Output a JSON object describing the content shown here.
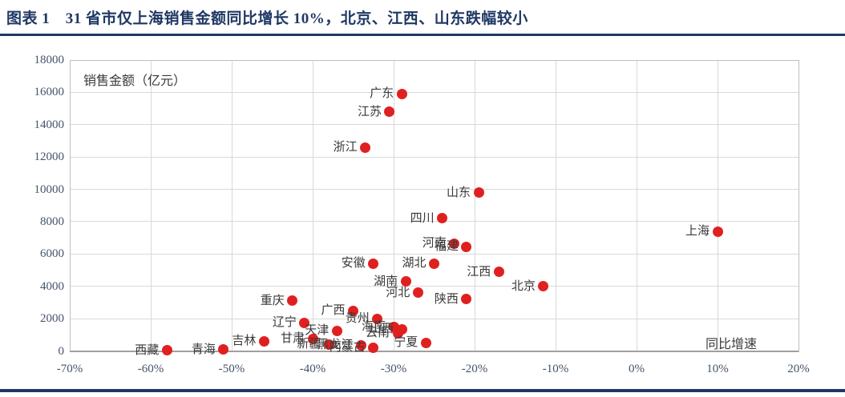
{
  "header": {
    "title": "图表 1　31 省市仅上海销售金额同比增长 10%，北京、江西、山东跌幅较小"
  },
  "colors": {
    "title_navy": "#1f3864",
    "tick_text": "#44546a",
    "marker_red": "#e02020",
    "gridline": "#d9d9d9"
  },
  "chart_data": {
    "type": "scatter",
    "title": "",
    "xlabel": "同比增速",
    "ylabel": "销售金额（亿元）",
    "xlim": [
      -70,
      20
    ],
    "ylim": [
      0,
      18000
    ],
    "x_tick_values": [
      -70,
      -60,
      -50,
      -40,
      -30,
      -20,
      -10,
      0,
      10,
      20
    ],
    "x_tick_labels": [
      "-70%",
      "-60%",
      "-50%",
      "-40%",
      "-30%",
      "-20%",
      "-10%",
      "0%",
      "10%",
      "20%"
    ],
    "y_tick_values": [
      0,
      2000,
      4000,
      6000,
      8000,
      10000,
      12000,
      14000,
      16000,
      18000
    ],
    "grid": true,
    "legend": "none",
    "marker_color": "#e02020",
    "points": [
      {
        "name": "广东",
        "x": -29,
        "y": 15900
      },
      {
        "name": "江苏",
        "x": -30.5,
        "y": 14800
      },
      {
        "name": "浙江",
        "x": -33.5,
        "y": 12600
      },
      {
        "name": "山东",
        "x": -19.5,
        "y": 9800
      },
      {
        "name": "四川",
        "x": -24,
        "y": 8200
      },
      {
        "name": "上海",
        "x": 10,
        "y": 7400
      },
      {
        "name": "河南",
        "x": -22.5,
        "y": 6650
      },
      {
        "name": "福建",
        "x": -21,
        "y": 6450
      },
      {
        "name": "安徽",
        "x": -32.5,
        "y": 5400
      },
      {
        "name": "湖北",
        "x": -25,
        "y": 5400
      },
      {
        "name": "江西",
        "x": -17,
        "y": 4900
      },
      {
        "name": "湖南",
        "x": -28.5,
        "y": 4300
      },
      {
        "name": "北京",
        "x": -11.5,
        "y": 4000
      },
      {
        "name": "河北",
        "x": -27,
        "y": 3600
      },
      {
        "name": "陕西",
        "x": -21,
        "y": 3200
      },
      {
        "name": "重庆",
        "x": -42.5,
        "y": 3100
      },
      {
        "name": "广西",
        "x": -35,
        "y": 2500
      },
      {
        "name": "贵州",
        "x": -32,
        "y": 2000
      },
      {
        "name": "辽宁",
        "x": -41,
        "y": 1750
      },
      {
        "name": "海南",
        "x": -30,
        "y": 1500
      },
      {
        "name": "山西",
        "x": -29,
        "y": 1350
      },
      {
        "name": "天津",
        "x": -37,
        "y": 1250
      },
      {
        "name": "云南",
        "x": -29.5,
        "y": 1100
      },
      {
        "name": "甘肃",
        "x": -40,
        "y": 750
      },
      {
        "name": "吉林",
        "x": -46,
        "y": 600
      },
      {
        "name": "宁夏",
        "x": -26,
        "y": 500
      },
      {
        "name": "新疆",
        "x": -38,
        "y": 400
      },
      {
        "name": "黑龙江",
        "x": -34,
        "y": 350
      },
      {
        "name": "内蒙古",
        "x": -32.5,
        "y": 200
      },
      {
        "name": "青海",
        "x": -51,
        "y": 80
      },
      {
        "name": "西藏",
        "x": -58,
        "y": 30
      }
    ]
  }
}
